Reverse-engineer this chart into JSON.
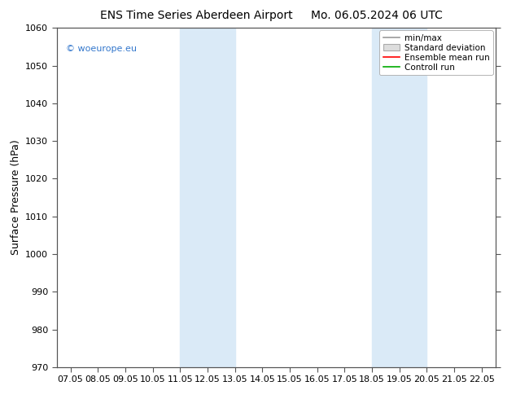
{
  "title_left": "ENS Time Series Aberdeen Airport",
  "title_right": "Mo. 06.05.2024 06 UTC",
  "ylabel": "Surface Pressure (hPa)",
  "ylim": [
    970,
    1060
  ],
  "yticks": [
    970,
    980,
    990,
    1000,
    1010,
    1020,
    1030,
    1040,
    1050,
    1060
  ],
  "xtick_labels": [
    "07.05",
    "08.05",
    "09.05",
    "10.05",
    "11.05",
    "12.05",
    "13.05",
    "14.05",
    "15.05",
    "16.05",
    "17.05",
    "18.05",
    "19.05",
    "20.05",
    "21.05",
    "22.05"
  ],
  "x_values": [
    7,
    8,
    9,
    10,
    11,
    12,
    13,
    14,
    15,
    16,
    17,
    18,
    19,
    20,
    21,
    22
  ],
  "xlim": [
    6.5,
    22.5
  ],
  "shaded_bands": [
    {
      "x_start": 11.0,
      "x_end": 13.0
    },
    {
      "x_start": 18.0,
      "x_end": 20.0
    }
  ],
  "shade_color": "#daeaf7",
  "background_color": "#ffffff",
  "legend_items": [
    {
      "label": "min/max",
      "color": "#999999",
      "type": "line"
    },
    {
      "label": "Standard deviation",
      "color": "#cccccc",
      "type": "box"
    },
    {
      "label": "Ensemble mean run",
      "color": "#ff0000",
      "type": "line"
    },
    {
      "label": "Controll run",
      "color": "#00aa00",
      "type": "line"
    }
  ],
  "watermark": "© woeurope.eu",
  "watermark_color": "#3377cc",
  "title_fontsize": 10,
  "axis_label_fontsize": 9,
  "tick_fontsize": 8,
  "legend_fontsize": 7.5
}
